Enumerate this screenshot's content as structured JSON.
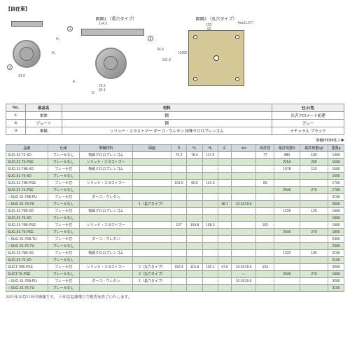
{
  "header": {
    "car_type": "【自在車】",
    "fig1": "図面1\n（長穴タイプ）",
    "fig2": "図面2\n（丸穴タイプ）"
  },
  "dims": {
    "d1_w": "34.9",
    "d2_plate": "114.3",
    "d2_h1": "66.6",
    "d2_h2": "101.6",
    "d2_b1": "76.2",
    "d2_b2": "92.1",
    "d3_w": "120",
    "d3_w2": "90",
    "d3_h": "120",
    "d3_h2": "90",
    "d3_hole": "4xø11.5穴"
  },
  "parts": {
    "headers": [
      "No.",
      "部品名",
      "材料",
      "仕上/色"
    ],
    "rows": [
      [
        "①",
        "本体",
        "鋼",
        "光沢クロメート処理"
      ],
      [
        "②",
        "プレート",
        "鋼",
        "グレー"
      ],
      [
        "③",
        "車輪",
        "ソリッド・エラストマー\nダーコ・ウレタン\n特殊クロロプレンゴム",
        "ナチュラル\nブラック"
      ]
    ]
  },
  "mat_note": "車輪材料特性 2 ▶",
  "spec": {
    "headers": [
      "品番",
      "仕様",
      "車輪材料",
      "図面",
      "D",
      "H₁",
      "H₂",
      "E",
      "dxℓ",
      "総許容",
      "最許荷重N",
      "最許荷重kgf",
      "重量g"
    ],
    "rows": [
      [
        "SUG-31-73-XD",
        "ブレーキなし",
        "特殊クロロプレンゴム",
        "",
        "76.2",
        "78.4",
        "117.5",
        "",
        "",
        "77",
        "980",
        "100",
        "1300",
        false
      ],
      [
        "SUG-31-73-PSE",
        "ブレーキなし",
        "ソリッド・エラストマー",
        "",
        "",
        "",
        "",
        "",
        "",
        "",
        "2254",
        "230",
        "1500",
        true
      ],
      [
        "SUG-31-74B-XD",
        "ブレーキ付",
        "特殊クロロプレンゴム",
        "",
        "",
        "",
        "",
        "",
        "",
        "",
        "1078",
        "110",
        "1500",
        false
      ],
      [
        "SUG-31-74-XD",
        "ブレーキなし",
        "",
        "",
        "",
        "",
        "",
        "",
        "",
        "",
        "",
        "",
        "1500",
        true
      ],
      [
        "SUG-31-74B-PSE",
        "ブレーキ付",
        "ソリッド・エラストマー",
        "",
        "101.6",
        "90.5",
        "141.3",
        "",
        "",
        "89",
        "",
        "",
        "1700",
        false
      ],
      [
        "SUG-31-74-PSE",
        "ブレーキなし",
        "",
        "",
        "",
        "",
        "",
        "",
        "",
        "",
        "2646",
        "270",
        "1700",
        true
      ],
      [
        "☆SUG-31-74B-PU",
        "ブレーキ付",
        "ダーコ・ウレタン",
        "",
        "",
        "",
        "",
        "",
        "",
        "",
        "",
        "",
        "2100",
        false
      ],
      [
        "☆SUG-31-74-PU",
        "ブレーキなし",
        "",
        "1（長穴タイプ）",
        "",
        "",
        "",
        "38.1",
        "10.3X19.6",
        "",
        "",
        "",
        "2000",
        true
      ],
      [
        "SUG-31-75B-XD",
        "ブレーキ付",
        "特殊クロロプレンゴム",
        "",
        "",
        "",
        "",
        "",
        "",
        "",
        "1225",
        "125",
        "1900",
        false
      ],
      [
        "SUG-31-75-XD",
        "ブレーキなし",
        "",
        "",
        "",
        "",
        "",
        "",
        "",
        "",
        "",
        "",
        "1900",
        true
      ],
      [
        "SUG-31-75B-PSE",
        "ブレーキ付",
        "ソリッド・エラストマー",
        "",
        "127",
        "104.8",
        "168.3",
        "",
        "",
        "102",
        "",
        "",
        "1900",
        false
      ],
      [
        "SUG-31-75-PSE",
        "ブレーキなし",
        "",
        "",
        "",
        "",
        "",
        "",
        "",
        "",
        "2646",
        "270",
        "1800",
        true
      ],
      [
        "☆SUG-31-75B-TU",
        "ブレーキ付",
        "ダーコ・ウレタン",
        "",
        "",
        "",
        "",
        "",
        "",
        "",
        "",
        "",
        "2400",
        false
      ],
      [
        "☆SUG-31-75-TU",
        "ブレーキなし",
        "",
        "",
        "",
        "",
        "",
        "",
        "",
        "",
        "",
        "",
        "2300",
        true
      ],
      [
        "SUG-31-76B-XD",
        "ブレーキ付",
        "特殊クロロプレンゴム",
        "",
        "",
        "",
        "",
        "",
        "",
        "",
        "1323",
        "135",
        "2100",
        false
      ],
      [
        "SUG-31-76-XD",
        "ブレーキなし",
        "",
        "",
        "",
        "",
        "",
        "",
        "",
        "",
        "",
        "",
        "2100",
        true
      ],
      [
        "SUGT-76B-PSE",
        "ブレーキ付",
        "ソリッド・エラストマー",
        "2（丸穴タイプ）",
        "152.4",
        "115.8",
        "192.1",
        "47.6",
        "10.3X19.6",
        "124",
        "",
        "",
        "2000",
        false
      ],
      [
        "SUGT-76-PSE",
        "ブレーキなし",
        "",
        "2（丸穴タイプ）",
        "",
        "",
        "",
        "",
        "—",
        "",
        "2646",
        "270",
        "1900",
        true
      ],
      [
        "☆SUG-31-76B-PU",
        "ブレーキ付",
        "ダーコ・ウレタン",
        "1（長穴タイプ）",
        "",
        "",
        "",
        "",
        "10.3X19.6",
        "",
        "",
        "",
        "3200",
        false
      ],
      [
        "☆SUG-31-76-TU",
        "ブレーキなし",
        "",
        "",
        "",
        "",
        "",
        "",
        "",
        "",
        "",
        "",
        "3100",
        true
      ]
    ]
  },
  "footer": "2021年10月21日の情報です。　☆印は在庫限りで販売を終了いたします。"
}
